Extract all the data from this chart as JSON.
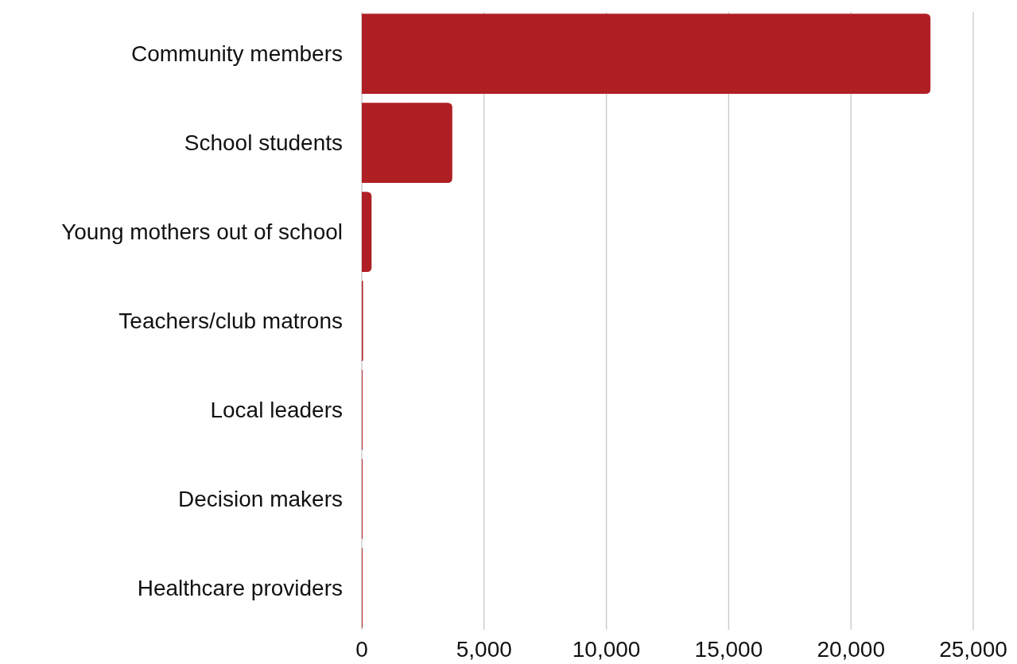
{
  "chart_data": {
    "type": "bar",
    "orientation": "horizontal",
    "categories": [
      "Community members",
      "School students",
      "Young mothers out of school",
      "Teachers/club matrons",
      "Local leaders",
      "Decision makers",
      "Healthcare providers"
    ],
    "values": [
      23250,
      3700,
      400,
      50,
      30,
      30,
      30
    ],
    "color": "#b01f24",
    "xlim": [
      0,
      25000
    ],
    "xticks": [
      {
        "value": 0,
        "label": "0"
      },
      {
        "value": 5000,
        "label": "5,000"
      },
      {
        "value": 10000,
        "label": "10,000"
      },
      {
        "value": 15000,
        "label": "15,000"
      },
      {
        "value": 20000,
        "label": "20,000"
      },
      {
        "value": 25000,
        "label": "25,000"
      }
    ],
    "grid": "x"
  }
}
